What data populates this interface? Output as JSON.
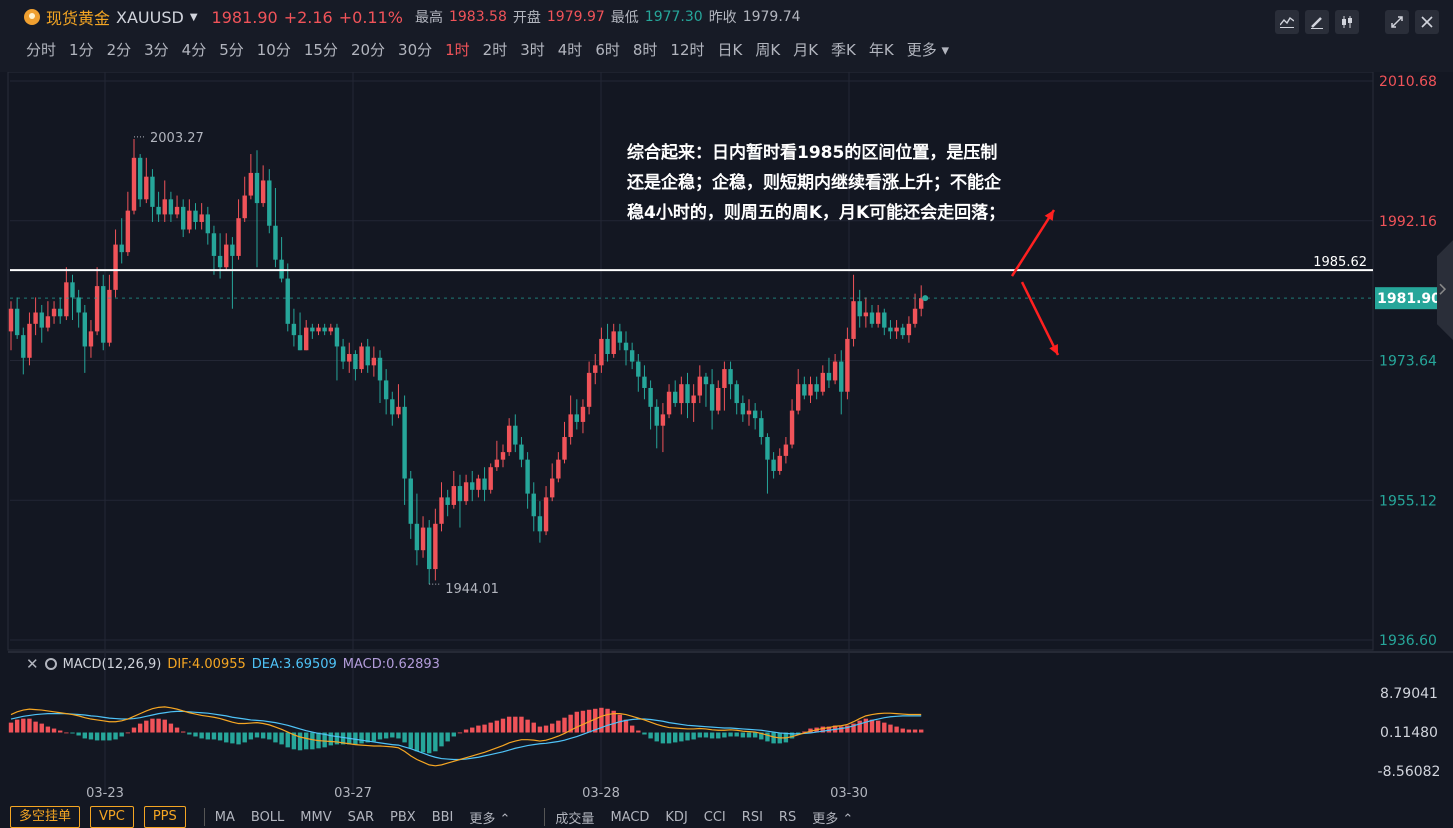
{
  "header": {
    "name": "现货黄金",
    "code": "XAUUSD",
    "price": "1981.90",
    "change": "+2.16",
    "change_pct": "+0.11%",
    "high_label": "最高",
    "high": "1983.58",
    "open_label": "开盘",
    "open": "1979.97",
    "low_label": "最低",
    "low": "1977.30",
    "prev_label": "昨收",
    "prev": "1979.74"
  },
  "periods": [
    "分时",
    "1分",
    "2分",
    "3分",
    "4分",
    "5分",
    "10分",
    "15分",
    "20分",
    "30分",
    "1时",
    "2时",
    "3时",
    "4时",
    "6时",
    "8时",
    "12时",
    "日K",
    "周K",
    "月K",
    "季K",
    "年K",
    "更多"
  ],
  "active_period": "1时",
  "toolbar_icons": [
    "indicator-icon",
    "draw-icon",
    "candle-type-icon",
    "fullscreen-icon",
    "close-icon"
  ],
  "annotation": "综合起来：日内暂时看1985的区间位置，是压制还是企稳；企稳，则短期内继续看涨上升；不能企稳4小时的，则周五的周K，月K可能还会走回落；",
  "macd_legend": {
    "name": "MACD(12,26,9)",
    "dif": "DIF:4.00955",
    "dea": "DEA:3.69509",
    "macd": "MACD:0.62893"
  },
  "bottom": {
    "buttons": [
      "多空挂单",
      "VPC",
      "PPS"
    ],
    "main_indicators": [
      "MA",
      "BOLL",
      "MMV",
      "SAR",
      "PBX",
      "BBI",
      "更多"
    ],
    "sub_indicators": [
      "成交量",
      "MACD",
      "KDJ",
      "CCI",
      "RSI",
      "RS",
      "更多"
    ]
  },
  "colors": {
    "up": "#f05359",
    "down": "#26a69a",
    "bg": "#131722",
    "dif": "#f5a623",
    "dea": "#4fc3f7",
    "macd": "#b39ddb"
  },
  "chart_data": [
    {
      "type": "candlestick",
      "title": "",
      "ylim": [
        1936.6,
        2010.68
      ],
      "y_ticks": [
        "2010.68",
        "1992.16",
        "1973.64",
        "1955.12",
        "1936.60"
      ],
      "x_ticks": [
        "03-23",
        "03-27",
        "03-28",
        "03-30"
      ],
      "current_price_label": "1981.90",
      "horizontal_line": {
        "value": 1985.62,
        "label": "1985.62"
      },
      "max_label": "2003.27",
      "min_label": "1944.01",
      "candles": [
        [
          1977.5,
          1980.5,
          1975.0,
          1981.5
        ],
        [
          1980.5,
          1977.0,
          1976.5,
          1982.0
        ],
        [
          1977.0,
          1974.0,
          1971.8,
          1978.0
        ],
        [
          1974.0,
          1978.5,
          1973.0,
          1980.0
        ],
        [
          1978.5,
          1980.0,
          1977.0,
          1982.0
        ],
        [
          1980.0,
          1978.0,
          1976.0,
          1981.0
        ],
        [
          1978.0,
          1979.5,
          1977.5,
          1981.5
        ],
        [
          1979.5,
          1980.5,
          1978.5,
          1981.5
        ],
        [
          1980.5,
          1979.5,
          1978.5,
          1982.0
        ],
        [
          1979.5,
          1984.0,
          1979.0,
          1986.0
        ],
        [
          1984.0,
          1982.0,
          1979.0,
          1985.0
        ],
        [
          1982.0,
          1980.0,
          1978.0,
          1983.0
        ],
        [
          1980.0,
          1975.5,
          1972.0,
          1981.0
        ],
        [
          1975.5,
          1977.5,
          1974.0,
          1979.0
        ],
        [
          1977.5,
          1983.5,
          1977.0,
          1986.0
        ],
        [
          1983.5,
          1976.0,
          1975.0,
          1985.0
        ],
        [
          1976.0,
          1983.0,
          1975.5,
          1985.0
        ],
        [
          1983.0,
          1989.0,
          1982.0,
          1991.0
        ],
        [
          1989.0,
          1988.0,
          1986.5,
          1992.5
        ],
        [
          1988.0,
          1993.5,
          1987.5,
          1996.0
        ],
        [
          1993.5,
          2000.5,
          1993.0,
          2003.0
        ],
        [
          2000.5,
          1995.0,
          1994.0,
          2001.0
        ],
        [
          1995.0,
          1998.0,
          1994.5,
          2000.5
        ],
        [
          1998.0,
          1994.0,
          1992.0,
          1999.0
        ],
        [
          1994.0,
          1993.0,
          1992.0,
          1996.0
        ],
        [
          1993.0,
          1995.0,
          1992.0,
          1997.5
        ],
        [
          1995.0,
          1993.0,
          1992.0,
          1996.0
        ],
        [
          1993.0,
          1994.0,
          1992.5,
          1995.5
        ],
        [
          1994.0,
          1991.0,
          1990.0,
          1995.0
        ],
        [
          1991.0,
          1993.5,
          1990.5,
          1995.0
        ],
        [
          1993.5,
          1992.0,
          1991.0,
          1994.5
        ],
        [
          1992.0,
          1993.0,
          1991.0,
          1994.5
        ],
        [
          1993.0,
          1990.5,
          1989.0,
          1994.0
        ],
        [
          1990.5,
          1987.5,
          1985.0,
          1991.5
        ],
        [
          1987.5,
          1986.0,
          1984.5,
          1990.5
        ],
        [
          1986.0,
          1989.0,
          1985.5,
          1990.5
        ],
        [
          1989.0,
          1987.5,
          1980.5,
          1990.0
        ],
        [
          1987.5,
          1992.5,
          1987.0,
          1995.0
        ],
        [
          1992.5,
          1995.5,
          1992.0,
          1998.0
        ],
        [
          1995.5,
          1998.5,
          1995.0,
          2001.0
        ],
        [
          1998.5,
          1994.5,
          1986.0,
          2001.5
        ],
        [
          1994.5,
          1997.5,
          1994.0,
          1999.5
        ],
        [
          1997.5,
          1991.5,
          1990.5,
          1999.0
        ],
        [
          1991.5,
          1987.0,
          1986.0,
          1996.5
        ],
        [
          1987.0,
          1984.5,
          1984.0,
          1990.0
        ],
        [
          1984.5,
          1978.5,
          1977.5,
          1986.5
        ],
        [
          1978.5,
          1977.0,
          1975.5,
          1980.5
        ],
        [
          1977.0,
          1975.0,
          1975.0,
          1980.0
        ],
        [
          1975.0,
          1978.0,
          1975.0,
          1979.0
        ],
        [
          1978.0,
          1977.5,
          1976.5,
          1978.5
        ],
        [
          1977.5,
          1978.0,
          1977.0,
          1978.5
        ],
        [
          1978.0,
          1977.5,
          1977.0,
          1978.5
        ],
        [
          1977.5,
          1978.0,
          1977.0,
          1978.5
        ],
        [
          1978.0,
          1975.5,
          1971.0,
          1978.5
        ],
        [
          1975.5,
          1973.5,
          1972.5,
          1976.5
        ],
        [
          1973.5,
          1974.5,
          1972.0,
          1976.0
        ],
        [
          1974.5,
          1972.5,
          1971.0,
          1975.0
        ],
        [
          1972.5,
          1975.5,
          1972.0,
          1976.0
        ],
        [
          1975.5,
          1973.0,
          1972.0,
          1976.5
        ],
        [
          1973.0,
          1974.0,
          1971.5,
          1975.5
        ],
        [
          1974.0,
          1971.0,
          1968.0,
          1975.0
        ],
        [
          1971.0,
          1968.5,
          1966.5,
          1972.5
        ],
        [
          1968.5,
          1966.5,
          1965.0,
          1969.5
        ],
        [
          1966.5,
          1967.5,
          1966.0,
          1970.5
        ],
        [
          1967.5,
          1958.0,
          1954.5,
          1969.0
        ],
        [
          1958.0,
          1952.0,
          1950.0,
          1959.0
        ],
        [
          1952.0,
          1948.5,
          1946.5,
          1956.0
        ],
        [
          1948.5,
          1951.5,
          1947.5,
          1953.0
        ],
        [
          1951.5,
          1946.0,
          1944.0,
          1952.5
        ],
        [
          1946.0,
          1952.0,
          1944.5,
          1954.0
        ],
        [
          1952.0,
          1955.5,
          1951.0,
          1957.5
        ],
        [
          1955.5,
          1954.5,
          1953.0,
          1956.5
        ],
        [
          1954.5,
          1957.0,
          1954.0,
          1959.0
        ],
        [
          1957.0,
          1955.0,
          1951.5,
          1958.5
        ],
        [
          1955.0,
          1957.5,
          1954.5,
          1958.5
        ],
        [
          1957.5,
          1956.5,
          1955.0,
          1959.0
        ],
        [
          1956.5,
          1958.0,
          1955.5,
          1958.5
        ],
        [
          1958.0,
          1956.5,
          1955.0,
          1959.5
        ],
        [
          1956.5,
          1959.5,
          1956.0,
          1960.0
        ],
        [
          1959.5,
          1960.5,
          1959.0,
          1963.0
        ],
        [
          1960.5,
          1961.5,
          1959.5,
          1962.5
        ],
        [
          1961.5,
          1965.0,
          1961.0,
          1966.0
        ],
        [
          1965.0,
          1962.5,
          1961.5,
          1966.5
        ],
        [
          1962.5,
          1960.5,
          1959.5,
          1963.5
        ],
        [
          1960.5,
          1956.0,
          1954.0,
          1961.5
        ],
        [
          1956.0,
          1953.0,
          1951.0,
          1957.5
        ],
        [
          1953.0,
          1951.0,
          1949.5,
          1955.0
        ],
        [
          1951.0,
          1955.5,
          1950.5,
          1957.0
        ],
        [
          1955.5,
          1958.0,
          1955.0,
          1960.0
        ],
        [
          1958.0,
          1960.5,
          1957.5,
          1961.5
        ],
        [
          1960.5,
          1963.5,
          1960.0,
          1965.5
        ],
        [
          1963.5,
          1966.5,
          1962.5,
          1969.0
        ],
        [
          1966.5,
          1965.5,
          1964.5,
          1968.5
        ],
        [
          1965.5,
          1967.5,
          1964.0,
          1968.5
        ],
        [
          1967.5,
          1972.0,
          1966.5,
          1973.5
        ],
        [
          1972.0,
          1973.0,
          1970.5,
          1974.5
        ],
        [
          1973.0,
          1976.5,
          1972.0,
          1978.0
        ],
        [
          1976.5,
          1974.5,
          1973.5,
          1978.5
        ],
        [
          1974.5,
          1977.5,
          1974.0,
          1978.5
        ],
        [
          1977.5,
          1976.0,
          1975.0,
          1978.5
        ],
        [
          1976.0,
          1975.0,
          1973.0,
          1977.5
        ],
        [
          1975.0,
          1973.5,
          1972.5,
          1976.0
        ],
        [
          1973.5,
          1971.5,
          1969.5,
          1974.5
        ],
        [
          1971.5,
          1970.0,
          1968.5,
          1973.0
        ],
        [
          1970.0,
          1967.5,
          1964.5,
          1971.0
        ],
        [
          1967.5,
          1965.0,
          1962.0,
          1968.5
        ],
        [
          1965.0,
          1966.5,
          1961.5,
          1968.0
        ],
        [
          1966.5,
          1969.5,
          1966.0,
          1970.5
        ],
        [
          1969.5,
          1968.0,
          1967.5,
          1971.0
        ],
        [
          1968.0,
          1970.5,
          1966.5,
          1971.5
        ],
        [
          1970.5,
          1968.0,
          1966.0,
          1972.0
        ],
        [
          1968.0,
          1969.0,
          1965.5,
          1970.5
        ],
        [
          1969.0,
          1971.5,
          1968.0,
          1973.0
        ],
        [
          1971.5,
          1970.5,
          1967.5,
          1972.0
        ],
        [
          1970.5,
          1967.0,
          1964.5,
          1972.5
        ],
        [
          1967.0,
          1970.0,
          1966.5,
          1971.0
        ],
        [
          1970.0,
          1972.5,
          1967.0,
          1973.5
        ],
        [
          1972.5,
          1970.5,
          1968.5,
          1973.5
        ],
        [
          1970.5,
          1968.0,
          1966.5,
          1971.0
        ],
        [
          1968.0,
          1966.5,
          1965.5,
          1969.0
        ],
        [
          1966.5,
          1967.0,
          1965.0,
          1968.5
        ],
        [
          1967.0,
          1966.0,
          1964.5,
          1968.0
        ],
        [
          1966.0,
          1963.5,
          1962.5,
          1967.0
        ],
        [
          1963.5,
          1960.5,
          1956.0,
          1964.0
        ],
        [
          1960.5,
          1959.0,
          1958.0,
          1961.5
        ],
        [
          1959.0,
          1961.0,
          1958.5,
          1962.0
        ],
        [
          1961.0,
          1962.5,
          1960.0,
          1963.5
        ],
        [
          1962.5,
          1967.0,
          1962.0,
          1968.5
        ],
        [
          1967.0,
          1970.5,
          1966.5,
          1972.5
        ],
        [
          1970.5,
          1969.0,
          1968.5,
          1971.5
        ],
        [
          1969.0,
          1970.5,
          1968.0,
          1971.5
        ],
        [
          1970.5,
          1969.5,
          1968.5,
          1971.5
        ],
        [
          1969.5,
          1972.0,
          1969.0,
          1973.0
        ],
        [
          1972.0,
          1971.0,
          1970.0,
          1974.0
        ],
        [
          1971.0,
          1973.5,
          1970.5,
          1974.5
        ],
        [
          1973.5,
          1969.5,
          1966.5,
          1975.0
        ],
        [
          1969.5,
          1976.5,
          1968.5,
          1978.0
        ],
        [
          1976.5,
          1981.5,
          1975.5,
          1985.0
        ],
        [
          1981.5,
          1979.5,
          1978.0,
          1983.0
        ],
        [
          1979.5,
          1980.0,
          1978.0,
          1982.0
        ],
        [
          1980.0,
          1978.5,
          1978.0,
          1981.0
        ],
        [
          1978.5,
          1980.0,
          1978.0,
          1981.0
        ],
        [
          1980.0,
          1978.0,
          1977.0,
          1980.5
        ],
        [
          1978.0,
          1977.5,
          1976.5,
          1979.0
        ],
        [
          1977.5,
          1978.0,
          1976.5,
          1979.0
        ],
        [
          1978.0,
          1977.0,
          1976.5,
          1978.5
        ],
        [
          1977.0,
          1978.5,
          1976.0,
          1979.5
        ],
        [
          1978.5,
          1980.5,
          1978.0,
          1982.5
        ],
        [
          1980.5,
          1981.9,
          1979.5,
          1983.6
        ]
      ]
    },
    {
      "type": "macd",
      "ylim": [
        -8.56082,
        8.79041
      ],
      "y_ticks": [
        "8.79041",
        "0.11480",
        "-8.56082"
      ],
      "x_ticks": [
        "03-23",
        "03-27",
        "03-28",
        "03-30"
      ],
      "dif": [
        4.0,
        4.6,
        5.0,
        5.2,
        5.1,
        5.0,
        4.8,
        4.6,
        4.4,
        4.2,
        4.0,
        3.7,
        3.3,
        3.0,
        2.8,
        2.6,
        2.4,
        2.4,
        2.6,
        3.0,
        3.6,
        4.2,
        4.8,
        5.3,
        5.6,
        5.7,
        5.5,
        5.2,
        4.8,
        4.4,
        4.1,
        3.8,
        3.6,
        3.4,
        3.1,
        2.7,
        2.3,
        2.0,
        2.0,
        2.1,
        2.2,
        2.0,
        1.7,
        1.2,
        0.7,
        0.1,
        -0.5,
        -1.0,
        -1.3,
        -1.6,
        -1.8,
        -1.9,
        -2.0,
        -2.1,
        -2.3,
        -2.5,
        -2.7,
        -2.8,
        -2.9,
        -3.0,
        -3.0,
        -3.1,
        -3.2,
        -3.4,
        -4.2,
        -5.2,
        -6.0,
        -6.6,
        -7.2,
        -7.4,
        -7.2,
        -6.8,
        -6.4,
        -6.0,
        -5.6,
        -5.2,
        -4.8,
        -4.4,
        -3.9,
        -3.4,
        -2.9,
        -2.3,
        -1.9,
        -1.6,
        -1.6,
        -1.7,
        -1.9,
        -1.7,
        -1.3,
        -0.8,
        -0.2,
        0.5,
        1.2,
        1.8,
        2.4,
        3.0,
        3.6,
        4.0,
        4.2,
        4.2,
        4.0,
        3.6,
        3.2,
        2.8,
        2.3,
        1.8,
        1.4,
        1.1,
        1.0,
        0.9,
        0.8,
        0.8,
        0.9,
        0.8,
        0.6,
        0.5,
        0.5,
        0.6,
        0.5,
        0.3,
        0.2,
        0.1,
        -0.2,
        -0.6,
        -1.0,
        -1.2,
        -1.2,
        -0.9,
        -0.5,
        -0.1,
        0.3,
        0.6,
        0.9,
        1.1,
        1.4,
        1.5,
        1.8,
        2.4,
        3.1,
        3.7,
        4.0,
        4.2,
        4.3,
        4.3,
        4.2,
        4.1,
        4.0,
        4.0,
        4.0
      ],
      "dea": [
        3.0,
        3.3,
        3.6,
        3.8,
        4.0,
        4.1,
        4.2,
        4.2,
        4.2,
        4.2,
        4.1,
        4.0,
        3.9,
        3.7,
        3.6,
        3.4,
        3.2,
        3.1,
        3.0,
        3.0,
        3.1,
        3.3,
        3.6,
        3.9,
        4.2,
        4.4,
        4.6,
        4.7,
        4.7,
        4.6,
        4.5,
        4.4,
        4.3,
        4.1,
        3.9,
        3.7,
        3.4,
        3.2,
        3.0,
        2.8,
        2.7,
        2.6,
        2.4,
        2.2,
        1.9,
        1.6,
        1.2,
        0.8,
        0.4,
        0.1,
        -0.2,
        -0.4,
        -0.7,
        -0.9,
        -1.1,
        -1.3,
        -1.5,
        -1.7,
        -1.9,
        -2.1,
        -2.3,
        -2.5,
        -2.7,
        -2.8,
        -3.2,
        -3.6,
        -4.1,
        -4.6,
        -5.1,
        -5.5,
        -5.8,
        -5.9,
        -6.0,
        -6.0,
        -5.9,
        -5.7,
        -5.5,
        -5.2,
        -4.9,
        -4.6,
        -4.3,
        -3.9,
        -3.5,
        -3.2,
        -2.9,
        -2.7,
        -2.5,
        -2.4,
        -2.2,
        -2.0,
        -1.7,
        -1.3,
        -0.9,
        -0.4,
        0.1,
        0.6,
        1.1,
        1.6,
        2.0,
        2.4,
        2.7,
        2.9,
        3.0,
        3.0,
        2.9,
        2.7,
        2.5,
        2.2,
        2.0,
        1.8,
        1.6,
        1.5,
        1.4,
        1.3,
        1.2,
        1.1,
        1.0,
        1.0,
        0.9,
        0.8,
        0.7,
        0.6,
        0.5,
        0.3,
        0.1,
        -0.1,
        -0.2,
        -0.3,
        -0.3,
        -0.2,
        -0.1,
        0.1,
        0.3,
        0.5,
        0.7,
        0.9,
        1.1,
        1.5,
        1.9,
        2.3,
        2.7,
        3.0,
        3.3,
        3.5,
        3.6,
        3.7,
        3.7,
        3.7,
        3.7
      ]
    }
  ]
}
